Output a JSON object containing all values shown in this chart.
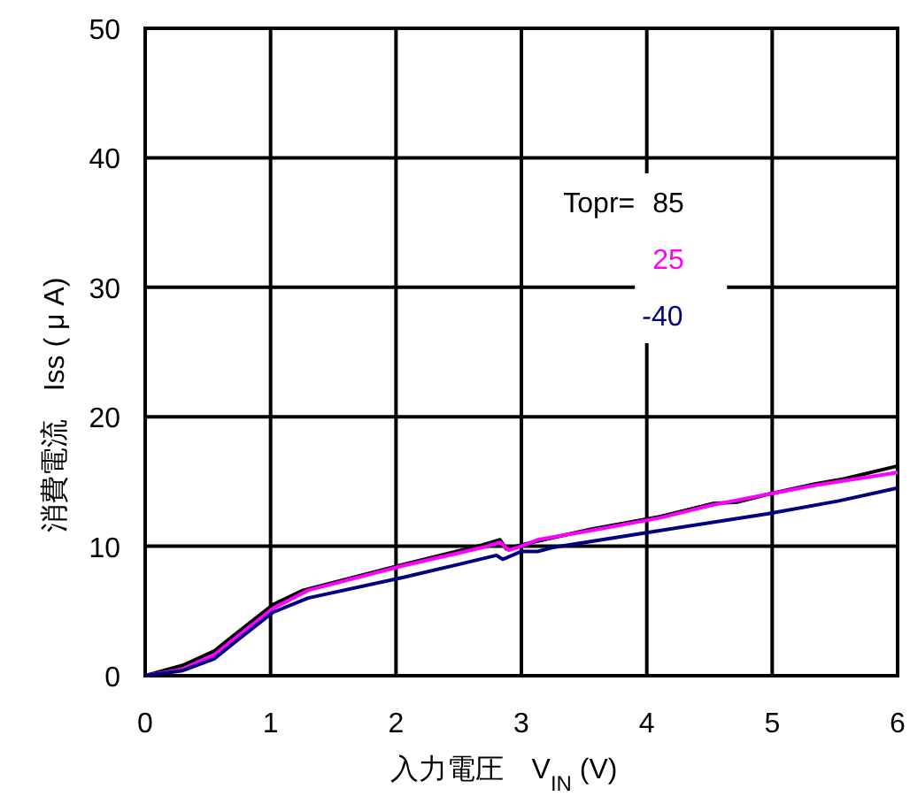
{
  "chart_data": {
    "type": "line",
    "xlabel": "入力電圧　V$_{IN}$ (V)",
    "ylabel": "消費電流　Iss ( μ A)",
    "legend_title": "Topr=",
    "legend": "top right",
    "grid": true,
    "marker": "none",
    "line_style": "solid",
    "xlim": [
      0,
      6
    ],
    "ylim": [
      0,
      50
    ],
    "xticks": [
      0,
      1,
      2,
      3,
      4,
      5,
      6
    ],
    "yticks": [
      0,
      10,
      20,
      30,
      40,
      50
    ],
    "series": [
      {
        "name": "85",
        "color": "#000000",
        "x": [
          0,
          0.3,
          0.55,
          0.73,
          1.02,
          1.26,
          2.06,
          2.69,
          2.83,
          2.88,
          3.0,
          3.13,
          3.55,
          4.11,
          4.53,
          4.72,
          4.96,
          5.34,
          5.57,
          6
        ],
        "values": [
          0,
          0.8,
          1.9,
          3.3,
          5.5,
          6.6,
          8.6,
          10.1,
          10.5,
          9.8,
          10.1,
          10.4,
          11.3,
          12.3,
          13.3,
          13.4,
          14.0,
          14.8,
          15.2,
          16.2
        ]
      },
      {
        "name": "25",
        "color": "#ff00ff",
        "x": [
          0,
          0.3,
          0.55,
          0.73,
          1.02,
          1.3,
          2.06,
          2.69,
          2.83,
          2.9,
          3.0,
          3.13,
          3.55,
          4.11,
          4.53,
          4.96,
          5.34,
          5.6,
          6
        ],
        "values": [
          0,
          0.5,
          1.6,
          3.0,
          5.2,
          6.6,
          8.5,
          9.9,
          10.3,
          9.7,
          10.0,
          10.5,
          11.2,
          12.2,
          13.2,
          14.0,
          14.7,
          15.1,
          15.7
        ]
      },
      {
        "name": "-40",
        "color": "#000080",
        "x": [
          0,
          0.3,
          0.55,
          0.73,
          1.02,
          1.3,
          2.06,
          2.5,
          2.8,
          2.85,
          2.88,
          3.0,
          3.13,
          3.25,
          4.1,
          4.96,
          5.53,
          6
        ],
        "values": [
          0,
          0.4,
          1.3,
          2.7,
          4.9,
          6.0,
          7.6,
          8.6,
          9.3,
          9.0,
          9.1,
          9.6,
          9.6,
          9.9,
          11.2,
          12.5,
          13.5,
          14.5
        ]
      }
    ]
  }
}
